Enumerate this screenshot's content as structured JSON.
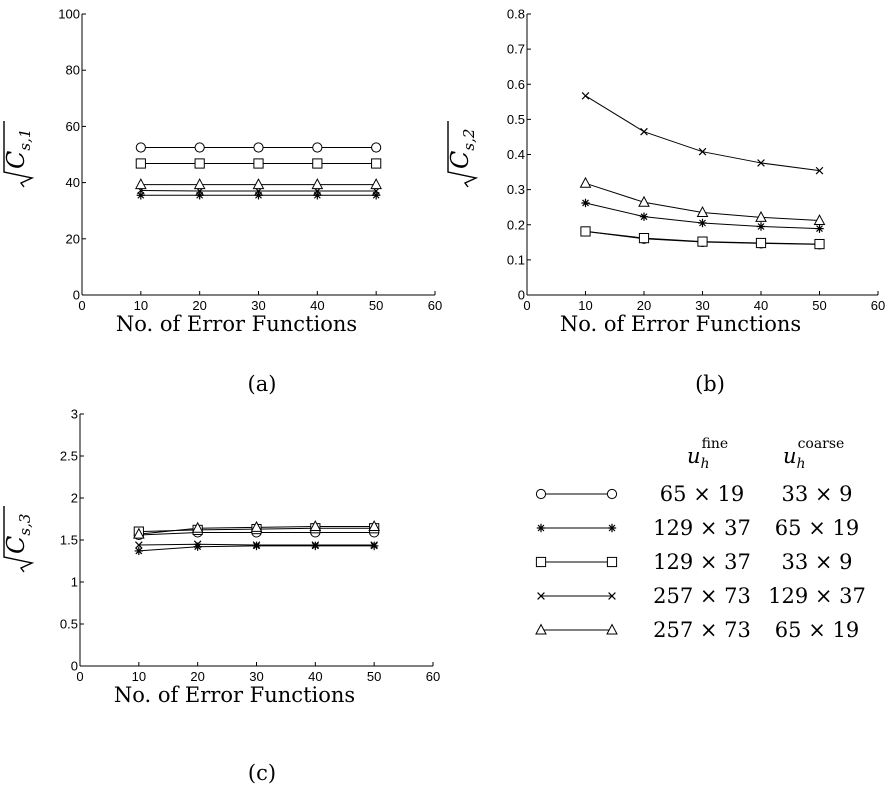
{
  "chart_data": [
    {
      "type": "line",
      "panel": "(a)",
      "xlabel": "No. of Error Functions",
      "ylabel": "√C_{s,1}",
      "ylabel_main": "C",
      "ylabel_sub": "s,1",
      "xlim": [
        0,
        60
      ],
      "ylim": [
        0,
        100
      ],
      "xticks": [
        0,
        10,
        20,
        30,
        40,
        50,
        60
      ],
      "yticks": [
        0,
        20,
        40,
        60,
        80,
        100
      ],
      "x": [
        10,
        20,
        30,
        40,
        50
      ],
      "series": [
        {
          "marker": "circle",
          "values": [
            52.5,
            52.5,
            52.5,
            52.5,
            52.5
          ]
        },
        {
          "marker": "star",
          "values": [
            35.5,
            35.5,
            35.5,
            35.5,
            35.5
          ]
        },
        {
          "marker": "square",
          "values": [
            46.8,
            46.8,
            46.8,
            46.8,
            46.8
          ]
        },
        {
          "marker": "x",
          "values": [
            37.2,
            37.0,
            37.0,
            37.0,
            37.0
          ]
        },
        {
          "marker": "triangle",
          "values": [
            39.3,
            39.3,
            39.3,
            39.3,
            39.3
          ]
        }
      ]
    },
    {
      "type": "line",
      "panel": "(b)",
      "xlabel": "No. of Error Functions",
      "ylabel": "√C_{s,2}",
      "ylabel_main": "C",
      "ylabel_sub": "s,2",
      "xlim": [
        0,
        60
      ],
      "ylim": [
        0,
        0.8
      ],
      "xticks": [
        0,
        10,
        20,
        30,
        40,
        50,
        60
      ],
      "yticks": [
        0,
        0.1,
        0.2,
        0.3,
        0.4,
        0.5,
        0.6,
        0.7,
        0.8
      ],
      "x": [
        10,
        20,
        30,
        40,
        50
      ],
      "series": [
        {
          "marker": "circle",
          "values": [
            0.181,
            0.16,
            0.151,
            0.147,
            0.144
          ]
        },
        {
          "marker": "star",
          "values": [
            0.262,
            0.223,
            0.205,
            0.195,
            0.189
          ]
        },
        {
          "marker": "square",
          "values": [
            0.181,
            0.162,
            0.152,
            0.148,
            0.145
          ]
        },
        {
          "marker": "x",
          "values": [
            0.567,
            0.465,
            0.408,
            0.376,
            0.354
          ]
        },
        {
          "marker": "triangle",
          "values": [
            0.318,
            0.264,
            0.235,
            0.221,
            0.212
          ]
        }
      ]
    },
    {
      "type": "line",
      "panel": "(c)",
      "xlabel": "No. of Error Functions",
      "ylabel": "√C_{s,3}",
      "ylabel_main": "C",
      "ylabel_sub": "s,3",
      "xlim": [
        0,
        60
      ],
      "ylim": [
        0,
        3
      ],
      "xticks": [
        0,
        10,
        20,
        30,
        40,
        50,
        60
      ],
      "yticks": [
        0,
        0.5,
        1,
        1.5,
        2,
        2.5,
        3
      ],
      "x": [
        10,
        20,
        30,
        40,
        50
      ],
      "series": [
        {
          "marker": "circle",
          "values": [
            1.56,
            1.59,
            1.59,
            1.59,
            1.59
          ]
        },
        {
          "marker": "star",
          "values": [
            1.37,
            1.42,
            1.43,
            1.43,
            1.43
          ]
        },
        {
          "marker": "square",
          "values": [
            1.6,
            1.62,
            1.63,
            1.64,
            1.64
          ]
        },
        {
          "marker": "x",
          "values": [
            1.44,
            1.45,
            1.44,
            1.44,
            1.44
          ]
        },
        {
          "marker": "triangle",
          "values": [
            1.57,
            1.64,
            1.65,
            1.66,
            1.66
          ]
        }
      ]
    }
  ],
  "legend": {
    "header_fine_base": "u",
    "header_fine_sub": "h",
    "header_fine_sup": "fine",
    "header_coarse_base": "u",
    "header_coarse_sub": "h",
    "header_coarse_sup": "coarse",
    "rows": [
      {
        "marker": "circle",
        "fine": "65 × 19",
        "coarse": "33 × 9"
      },
      {
        "marker": "star",
        "fine": "129 × 37",
        "coarse": "65 × 19"
      },
      {
        "marker": "square",
        "fine": "129 × 37",
        "coarse": "33 × 9"
      },
      {
        "marker": "x",
        "fine": "257 × 73",
        "coarse": "129 × 37"
      },
      {
        "marker": "triangle",
        "fine": "257 × 73",
        "coarse": "65 × 19"
      }
    ]
  },
  "colors": {
    "line": "#000000",
    "background": "#ffffff"
  }
}
